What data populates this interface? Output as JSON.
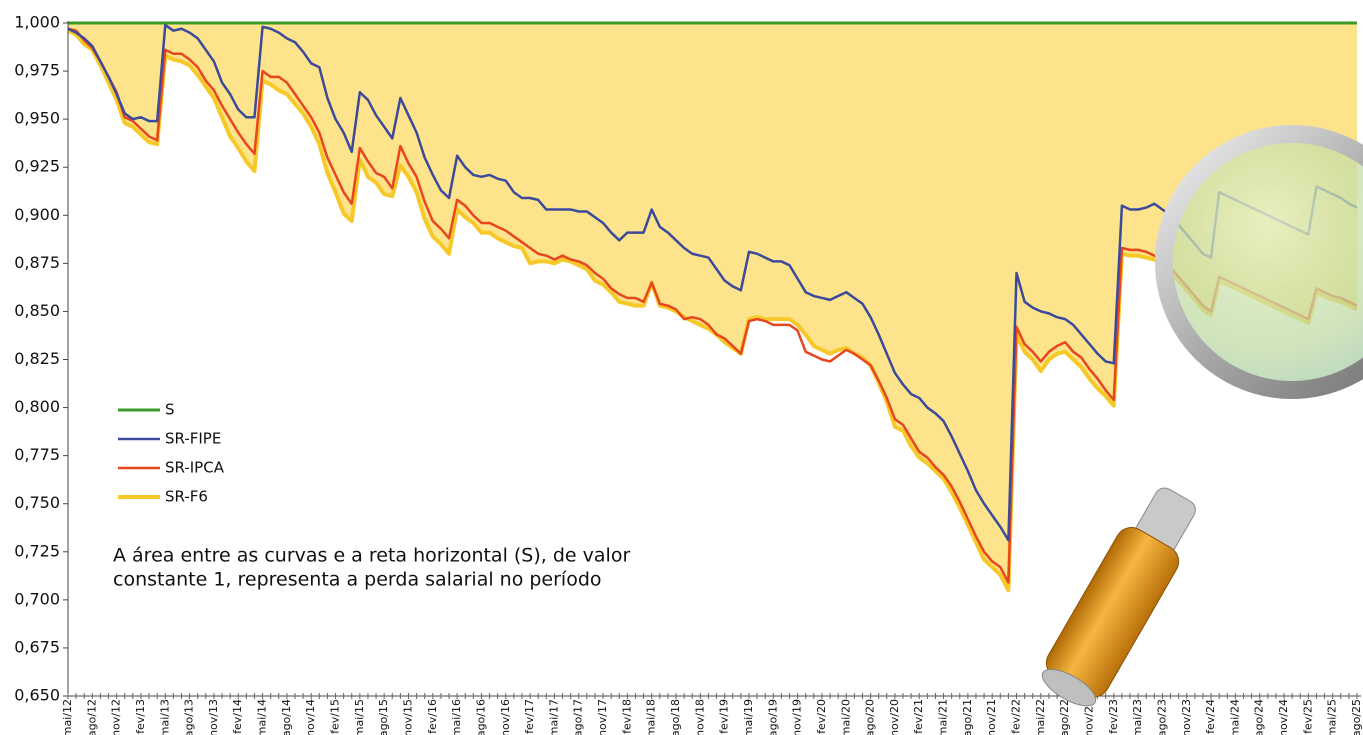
{
  "chart_data": {
    "type": "line",
    "annotation": [
      "A área entre as curvas e a reta horizontal (S), de valor",
      "constante 1, representa a perda salarial no período"
    ],
    "area_color": "#fde38c",
    "categories": [
      "mai/12",
      null,
      null,
      "ago/12",
      null,
      null,
      "nov/12",
      null,
      null,
      "fev/13",
      null,
      null,
      "mai/13",
      null,
      null,
      "ago/13",
      null,
      null,
      "nov/13",
      null,
      null,
      "fev/14",
      null,
      null,
      "mai/14",
      null,
      null,
      "ago/14",
      null,
      null,
      "nov/14",
      null,
      null,
      "fev/15",
      null,
      null,
      "mai/15",
      null,
      null,
      "ago/15",
      null,
      null,
      "nov/15",
      null,
      null,
      "fev/16",
      null,
      null,
      "mai/16",
      null,
      null,
      "ago/16",
      null,
      null,
      "nov/16",
      null,
      null,
      "fev/17",
      null,
      null,
      "mai/17",
      null,
      null,
      "ago/17",
      null,
      null,
      "nov/17",
      null,
      null,
      "fev/18",
      null,
      null,
      "mai/18",
      null,
      null,
      "ago/18",
      null,
      null,
      "nov/18",
      null,
      null,
      "fev/19",
      null,
      null,
      "mai/19",
      null,
      null,
      "ago/19",
      null,
      null,
      "nov/19",
      null,
      null,
      "fev/20",
      null,
      null,
      "mai/20",
      null,
      null,
      "ago/20",
      null,
      null,
      "nov/20",
      null,
      null,
      "fev/21",
      null,
      null,
      "mai/21",
      null,
      null,
      "ago/21",
      null,
      null,
      "nov/21",
      null,
      null,
      "fev/22",
      null,
      null,
      "mai/22",
      null,
      null,
      "ago/22",
      null,
      null,
      "nov/22",
      null,
      null,
      "fev/23",
      null,
      null,
      "mai/23",
      null,
      null,
      "ago/23",
      null,
      null,
      "nov/23",
      null,
      null,
      "fev/24",
      null,
      null,
      "mai/24",
      null,
      null,
      "ago/24",
      null,
      null,
      "nov/24",
      null,
      null,
      "fev/25",
      null,
      null,
      "mai/25",
      null,
      null,
      "ago/25"
    ],
    "series": [
      {
        "name": "S",
        "color": "#3c9a2a",
        "width": 3,
        "values": [
          1,
          1,
          1,
          1,
          1,
          1,
          1,
          1,
          1,
          1,
          1,
          1,
          1,
          1,
          1,
          1,
          1,
          1,
          1,
          1,
          1,
          1,
          1,
          1,
          1,
          1,
          1,
          1,
          1,
          1,
          1,
          1,
          1,
          1,
          1,
          1,
          1,
          1,
          1,
          1,
          1,
          1,
          1,
          1,
          1,
          1,
          1,
          1,
          1,
          1,
          1,
          1,
          1,
          1,
          1,
          1,
          1,
          1,
          1,
          1,
          1,
          1,
          1,
          1,
          1,
          1,
          1,
          1,
          1,
          1,
          1,
          1,
          1,
          1,
          1,
          1,
          1,
          1,
          1,
          1,
          1,
          1,
          1,
          1,
          1,
          1,
          1,
          1,
          1,
          1,
          1,
          1,
          1,
          1,
          1,
          1,
          1,
          1,
          1,
          1,
          1,
          1,
          1,
          1,
          1,
          1,
          1,
          1,
          1,
          1,
          1,
          1,
          1,
          1,
          1,
          1,
          1,
          1,
          1,
          1,
          1,
          1,
          1,
          1,
          1,
          1,
          1,
          1,
          1,
          1,
          1,
          1,
          1,
          1,
          1,
          1,
          1,
          1,
          1,
          1,
          1,
          1,
          1,
          1,
          1,
          1,
          1,
          1,
          1,
          1,
          1,
          1,
          1,
          1,
          1,
          1,
          1,
          1,
          1,
          1
        ]
      },
      {
        "name": "SR-FIPE",
        "color": "#3b4a9a",
        "width": 2.5,
        "values": [
          0.997,
          0.995,
          0.992,
          0.988,
          0.98,
          0.972,
          0.963,
          0.953,
          0.95,
          0.951,
          0.949,
          0.949,
          0.999,
          0.996,
          0.997,
          0.995,
          0.992,
          0.986,
          0.98,
          0.969,
          0.963,
          0.955,
          0.951,
          0.951,
          0.998,
          0.997,
          0.995,
          0.992,
          0.99,
          0.985,
          0.979,
          0.977,
          0.961,
          0.95,
          0.943,
          0.933,
          0.964,
          0.96,
          0.952,
          0.946,
          0.94,
          0.961,
          0.952,
          0.943,
          0.93,
          0.921,
          0.913,
          0.909,
          0.931,
          0.925,
          0.921,
          0.92,
          0.921,
          0.919,
          0.918,
          0.912,
          0.909,
          0.909,
          0.908,
          0.903,
          0.903,
          0.903,
          0.903,
          0.902,
          0.902,
          0.899,
          0.896,
          0.891,
          0.887,
          0.891,
          0.891,
          0.891,
          0.903,
          0.894,
          0.891,
          0.887,
          0.883,
          0.88,
          0.879,
          0.878,
          0.872,
          0.866,
          0.863,
          0.861,
          0.881,
          0.88,
          0.878,
          0.876,
          0.876,
          0.874,
          0.867,
          0.86,
          0.858,
          0.857,
          0.856,
          0.858,
          0.86,
          0.857,
          0.854,
          0.847,
          0.838,
          0.828,
          0.818,
          0.812,
          0.807,
          0.805,
          0.8,
          0.797,
          0.793,
          0.785,
          0.776,
          0.767,
          0.757,
          0.75,
          0.744,
          0.738,
          0.731,
          0.87,
          0.855,
          0.852,
          0.85,
          0.849,
          0.847,
          0.846,
          0.843,
          0.838,
          0.833,
          0.828,
          0.824,
          0.823,
          0.905,
          0.903,
          0.903,
          0.904,
          0.906,
          0.903,
          0.9,
          0.895,
          0.89,
          0.885,
          0.88,
          0.878,
          0.912,
          0.91,
          0.908,
          0.906,
          0.904,
          0.902,
          0.9,
          0.898,
          0.896,
          0.894,
          0.892,
          0.89,
          0.915,
          0.913,
          0.911,
          0.909,
          0.906,
          0.904
        ]
      },
      {
        "name": "SR-IPCA",
        "color": "#e8461e",
        "width": 2.5,
        "values": [
          0.997,
          0.996,
          0.991,
          0.987,
          0.98,
          0.972,
          0.964,
          0.951,
          0.949,
          0.945,
          0.941,
          0.939,
          0.986,
          0.984,
          0.984,
          0.981,
          0.977,
          0.97,
          0.965,
          0.957,
          0.95,
          0.943,
          0.937,
          0.932,
          0.975,
          0.972,
          0.972,
          0.969,
          0.963,
          0.957,
          0.951,
          0.943,
          0.93,
          0.921,
          0.912,
          0.906,
          0.935,
          0.928,
          0.922,
          0.92,
          0.914,
          0.936,
          0.927,
          0.92,
          0.907,
          0.897,
          0.893,
          0.888,
          0.908,
          0.905,
          0.9,
          0.896,
          0.896,
          0.894,
          0.892,
          0.889,
          0.886,
          0.883,
          0.88,
          0.879,
          0.877,
          0.879,
          0.877,
          0.876,
          0.874,
          0.87,
          0.867,
          0.862,
          0.859,
          0.857,
          0.857,
          0.855,
          0.865,
          0.854,
          0.853,
          0.851,
          0.846,
          0.847,
          0.846,
          0.843,
          0.838,
          0.836,
          0.832,
          0.828,
          0.845,
          0.846,
          0.845,
          0.843,
          0.843,
          0.843,
          0.84,
          0.829,
          0.827,
          0.825,
          0.824,
          0.827,
          0.83,
          0.828,
          0.825,
          0.822,
          0.814,
          0.805,
          0.794,
          0.791,
          0.784,
          0.777,
          0.774,
          0.769,
          0.765,
          0.759,
          0.751,
          0.742,
          0.733,
          0.725,
          0.72,
          0.717,
          0.709,
          0.842,
          0.833,
          0.829,
          0.824,
          0.829,
          0.832,
          0.834,
          0.829,
          0.826,
          0.82,
          0.815,
          0.809,
          0.804,
          0.883,
          0.882,
          0.882,
          0.881,
          0.879,
          0.877,
          0.873,
          0.868,
          0.863,
          0.858,
          0.853,
          0.85,
          0.868,
          0.866,
          0.864,
          0.862,
          0.86,
          0.858,
          0.856,
          0.854,
          0.852,
          0.85,
          0.848,
          0.846,
          0.862,
          0.86,
          0.858,
          0.857,
          0.855,
          0.853
        ]
      },
      {
        "name": "SR-F6",
        "color": "#f7c928",
        "width": 4,
        "values": [
          0.996,
          0.994,
          0.989,
          0.986,
          0.978,
          0.969,
          0.96,
          0.948,
          0.946,
          0.942,
          0.938,
          0.937,
          0.983,
          0.981,
          0.98,
          0.978,
          0.973,
          0.967,
          0.961,
          0.951,
          0.941,
          0.935,
          0.928,
          0.923,
          0.97,
          0.968,
          0.965,
          0.963,
          0.958,
          0.953,
          0.946,
          0.937,
          0.922,
          0.912,
          0.901,
          0.897,
          0.929,
          0.92,
          0.917,
          0.911,
          0.91,
          0.926,
          0.92,
          0.912,
          0.898,
          0.889,
          0.885,
          0.88,
          0.903,
          0.899,
          0.896,
          0.891,
          0.891,
          0.888,
          0.886,
          0.884,
          0.883,
          0.875,
          0.876,
          0.876,
          0.875,
          0.877,
          0.876,
          0.874,
          0.872,
          0.866,
          0.864,
          0.86,
          0.855,
          0.854,
          0.853,
          0.853,
          0.865,
          0.853,
          0.852,
          0.85,
          0.847,
          0.845,
          0.843,
          0.841,
          0.838,
          0.834,
          0.831,
          0.828,
          0.846,
          0.847,
          0.846,
          0.846,
          0.846,
          0.846,
          0.843,
          0.838,
          0.832,
          0.83,
          0.828,
          0.83,
          0.831,
          0.828,
          0.826,
          0.822,
          0.813,
          0.803,
          0.79,
          0.788,
          0.78,
          0.774,
          0.771,
          0.767,
          0.763,
          0.756,
          0.748,
          0.739,
          0.73,
          0.721,
          0.717,
          0.713,
          0.705,
          0.838,
          0.829,
          0.825,
          0.819,
          0.825,
          0.828,
          0.829,
          0.825,
          0.821,
          0.815,
          0.81,
          0.806,
          0.801,
          0.88,
          0.879,
          0.879,
          0.878,
          0.877,
          0.875,
          0.871,
          0.866,
          0.861,
          0.856,
          0.851,
          0.848,
          0.866,
          0.864,
          0.862,
          0.86,
          0.858,
          0.856,
          0.854,
          0.852,
          0.85,
          0.848,
          0.846,
          0.844,
          0.86,
          0.858,
          0.856,
          0.855,
          0.853,
          0.851
        ]
      }
    ],
    "ylim": [
      0.65,
      1.0
    ],
    "yticks": [
      {
        "value": 0.65,
        "label": "0,650"
      },
      {
        "value": 0.675,
        "label": "0,675"
      },
      {
        "value": 0.7,
        "label": "0,700"
      },
      {
        "value": 0.725,
        "label": "0,725"
      },
      {
        "value": 0.75,
        "label": "0,750"
      },
      {
        "value": 0.775,
        "label": "0,775"
      },
      {
        "value": 0.8,
        "label": "0,800"
      },
      {
        "value": 0.825,
        "label": "0,825"
      },
      {
        "value": 0.85,
        "label": "0,850"
      },
      {
        "value": 0.875,
        "label": "0,875"
      },
      {
        "value": 0.9,
        "label": "0,900"
      },
      {
        "value": 0.925,
        "label": "0,925"
      },
      {
        "value": 0.95,
        "label": "0,950"
      },
      {
        "value": 0.975,
        "label": "0,975"
      },
      {
        "value": 1.0,
        "label": "1,000"
      }
    ],
    "grid": false
  }
}
